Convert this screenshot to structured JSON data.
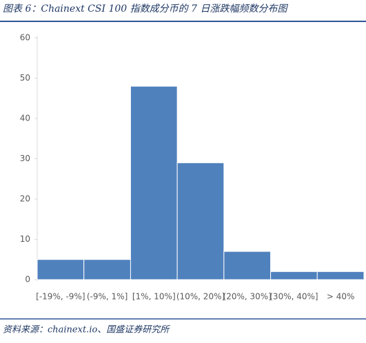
{
  "chart_data": {
    "type": "bar",
    "title": "图表 6：Chainext CSI 100 指数成分币的 7 日涨跌幅频数分布图",
    "source": "资料来源：chainext.io、国盛证券研究所",
    "categories": [
      "[-19%, -9%]",
      "(-9%, 1%]",
      "[1%, 10%]",
      "(10%, 20%]",
      "(20%, 30%]",
      "(30%, 40%]",
      "> 40%"
    ],
    "values": [
      5,
      5,
      48,
      29,
      7,
      2,
      2
    ],
    "color": "#4f81bd",
    "ylim": [
      0,
      60
    ],
    "yticks": [
      0,
      10,
      20,
      30,
      40,
      50,
      60
    ],
    "grid": false
  }
}
